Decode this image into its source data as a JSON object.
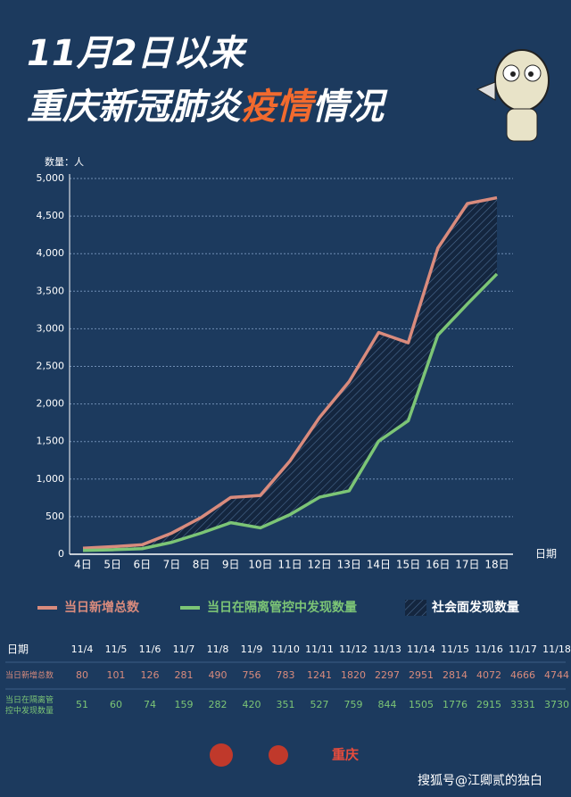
{
  "chart_data": {
    "type": "line",
    "title": "11月2日以来",
    "subtitle_parts": [
      "重庆新冠肺炎",
      "疫情",
      "情况"
    ],
    "y_label": "数量：人",
    "x_label": "日期",
    "categories": [
      "4日",
      "5日",
      "6日",
      "7日",
      "8日",
      "9日",
      "10日",
      "11日",
      "12日",
      "13日",
      "14日",
      "15日",
      "16日",
      "17日",
      "18日"
    ],
    "series": [
      {
        "name": "当日新增总数",
        "color": "#d98b7d",
        "values": [
          80,
          101,
          126,
          281,
          490,
          756,
          783,
          1241,
          1820,
          2297,
          2951,
          2814,
          4072,
          4666,
          4744
        ]
      },
      {
        "name": "当日在隔离管控中发现数量",
        "color": "#7cc576",
        "values": [
          51,
          60,
          74,
          159,
          282,
          420,
          351,
          527,
          759,
          844,
          1505,
          1776,
          2915,
          3331,
          3730
        ]
      }
    ],
    "area_name": "社会面发现数量",
    "ylim": [
      0,
      5000
    ],
    "yticks": [
      0,
      500,
      {
        "value": 1000,
        "label": "1,000"
      },
      {
        "value": 1500,
        "label": "1,500"
      },
      {
        "value": 2000,
        "label": "2,000"
      },
      {
        "value": 2500,
        "label": "2,500"
      },
      {
        "value": 3000,
        "label": "3,000"
      },
      {
        "value": 3500,
        "label": "3,500"
      },
      {
        "value": 4000,
        "label": "4,000"
      },
      {
        "value": 4500,
        "label": "4,500"
      },
      {
        "value": 5000,
        "label": "5,000"
      }
    ],
    "grid": true,
    "table": {
      "header": "日期",
      "dates": [
        "11/4",
        "11/5",
        "11/6",
        "11/7",
        "11/8",
        "11/9",
        "11/10",
        "11/11",
        "11/12",
        "11/13",
        "11/14",
        "11/15",
        "11/16",
        "11/17",
        "11/18"
      ]
    }
  },
  "footer": {
    "logo": "重庆",
    "watermark": "搜狐号@江卿贰的独白"
  }
}
